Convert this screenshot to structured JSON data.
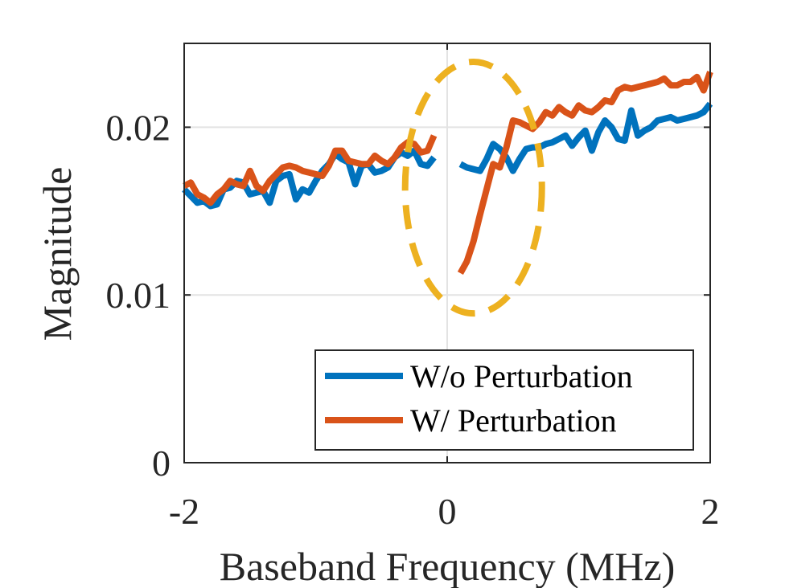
{
  "chart_data": {
    "type": "line",
    "title": "",
    "xlabel": "Baseband Frequency (MHz)",
    "ylabel": "Magnitude",
    "xlim": [
      -2,
      2
    ],
    "ylim": [
      0,
      0.025
    ],
    "xticks": [
      -2,
      0,
      2
    ],
    "xtick_labels": [
      "-2",
      "0",
      "2"
    ],
    "yticks": [
      0,
      0.01,
      0.02
    ],
    "ytick_labels": [
      "0",
      "0.01",
      "0.02"
    ],
    "grid": true,
    "legend_position": "bottom-right",
    "series": [
      {
        "name": "W/o Perturbation",
        "color": "#0072BD",
        "segments": [
          [
            [
              -2.0,
              0.0163
            ],
            [
              -1.95,
              0.0159
            ],
            [
              -1.9,
              0.0155
            ],
            [
              -1.85,
              0.0156
            ],
            [
              -1.8,
              0.0153
            ],
            [
              -1.75,
              0.0154
            ],
            [
              -1.7,
              0.0163
            ],
            [
              -1.65,
              0.0164
            ],
            [
              -1.6,
              0.0168
            ],
            [
              -1.55,
              0.0167
            ],
            [
              -1.5,
              0.016
            ],
            [
              -1.45,
              0.0161
            ],
            [
              -1.4,
              0.0162
            ],
            [
              -1.35,
              0.0155
            ],
            [
              -1.3,
              0.0168
            ],
            [
              -1.25,
              0.0171
            ],
            [
              -1.2,
              0.0172
            ],
            [
              -1.15,
              0.0157
            ],
            [
              -1.1,
              0.0163
            ],
            [
              -1.05,
              0.0161
            ],
            [
              -1.0,
              0.0168
            ],
            [
              -0.95,
              0.0174
            ],
            [
              -0.9,
              0.0178
            ],
            [
              -0.85,
              0.0184
            ],
            [
              -0.8,
              0.0181
            ],
            [
              -0.75,
              0.0179
            ],
            [
              -0.7,
              0.0166
            ],
            [
              -0.65,
              0.0177
            ],
            [
              -0.6,
              0.0178
            ],
            [
              -0.55,
              0.0173
            ],
            [
              -0.5,
              0.0174
            ],
            [
              -0.45,
              0.0176
            ],
            [
              -0.4,
              0.0182
            ],
            [
              -0.35,
              0.0185
            ],
            [
              -0.3,
              0.0183
            ],
            [
              -0.25,
              0.0186
            ],
            [
              -0.2,
              0.0178
            ],
            [
              -0.15,
              0.0177
            ],
            [
              -0.1,
              0.0182
            ]
          ],
          [
            [
              0.1,
              0.0178
            ],
            [
              0.15,
              0.0176
            ],
            [
              0.2,
              0.0175
            ],
            [
              0.25,
              0.0174
            ],
            [
              0.3,
              0.0181
            ],
            [
              0.35,
              0.019
            ],
            [
              0.4,
              0.0187
            ],
            [
              0.45,
              0.0182
            ],
            [
              0.5,
              0.0174
            ],
            [
              0.55,
              0.0181
            ],
            [
              0.6,
              0.0187
            ],
            [
              0.65,
              0.0188
            ],
            [
              0.7,
              0.0188
            ],
            [
              0.75,
              0.019
            ],
            [
              0.8,
              0.0191
            ],
            [
              0.85,
              0.0193
            ],
            [
              0.9,
              0.0195
            ],
            [
              0.95,
              0.0189
            ],
            [
              1.0,
              0.0194
            ],
            [
              1.05,
              0.0198
            ],
            [
              1.1,
              0.0186
            ],
            [
              1.15,
              0.0197
            ],
            [
              1.2,
              0.0204
            ],
            [
              1.25,
              0.02
            ],
            [
              1.3,
              0.0193
            ],
            [
              1.35,
              0.0192
            ],
            [
              1.4,
              0.021
            ],
            [
              1.45,
              0.0195
            ],
            [
              1.5,
              0.0198
            ],
            [
              1.55,
              0.02
            ],
            [
              1.6,
              0.0204
            ],
            [
              1.65,
              0.0205
            ],
            [
              1.7,
              0.0206
            ],
            [
              1.75,
              0.0204
            ],
            [
              1.8,
              0.0205
            ],
            [
              1.85,
              0.0206
            ],
            [
              1.9,
              0.0207
            ],
            [
              1.95,
              0.0209
            ],
            [
              2.0,
              0.0214
            ]
          ]
        ]
      },
      {
        "name": "W/ Perturbation",
        "color": "#D95319",
        "segments": [
          [
            [
              -2.0,
              0.0165
            ],
            [
              -1.95,
              0.0167
            ],
            [
              -1.9,
              0.016
            ],
            [
              -1.85,
              0.0158
            ],
            [
              -1.8,
              0.0155
            ],
            [
              -1.75,
              0.016
            ],
            [
              -1.7,
              0.0163
            ],
            [
              -1.65,
              0.0168
            ],
            [
              -1.6,
              0.0166
            ],
            [
              -1.55,
              0.0165
            ],
            [
              -1.5,
              0.0174
            ],
            [
              -1.45,
              0.0165
            ],
            [
              -1.4,
              0.0162
            ],
            [
              -1.35,
              0.0168
            ],
            [
              -1.3,
              0.0172
            ],
            [
              -1.25,
              0.0176
            ],
            [
              -1.2,
              0.0177
            ],
            [
              -1.15,
              0.0176
            ],
            [
              -1.1,
              0.0174
            ],
            [
              -1.05,
              0.0173
            ],
            [
              -1.0,
              0.0172
            ],
            [
              -0.95,
              0.0171
            ],
            [
              -0.9,
              0.0177
            ],
            [
              -0.85,
              0.0186
            ],
            [
              -0.8,
              0.0186
            ],
            [
              -0.75,
              0.018
            ],
            [
              -0.7,
              0.0179
            ],
            [
              -0.65,
              0.0178
            ],
            [
              -0.6,
              0.0178
            ],
            [
              -0.55,
              0.0183
            ],
            [
              -0.5,
              0.018
            ],
            [
              -0.45,
              0.0178
            ],
            [
              -0.4,
              0.0182
            ],
            [
              -0.35,
              0.0188
            ],
            [
              -0.3,
              0.0191
            ],
            [
              -0.25,
              0.019
            ],
            [
              -0.2,
              0.0185
            ],
            [
              -0.15,
              0.0186
            ],
            [
              -0.1,
              0.0195
            ]
          ],
          [
            [
              0.1,
              0.0113
            ],
            [
              0.15,
              0.012
            ],
            [
              0.2,
              0.0132
            ],
            [
              0.25,
              0.0148
            ],
            [
              0.3,
              0.0163
            ],
            [
              0.35,
              0.0178
            ],
            [
              0.4,
              0.0176
            ],
            [
              0.45,
              0.0188
            ],
            [
              0.5,
              0.0204
            ],
            [
              0.55,
              0.0203
            ],
            [
              0.6,
              0.0201
            ],
            [
              0.65,
              0.0199
            ],
            [
              0.7,
              0.0203
            ],
            [
              0.75,
              0.0209
            ],
            [
              0.8,
              0.0207
            ],
            [
              0.85,
              0.0212
            ],
            [
              0.9,
              0.0209
            ],
            [
              0.95,
              0.0207
            ],
            [
              1.0,
              0.0213
            ],
            [
              1.05,
              0.021
            ],
            [
              1.1,
              0.0209
            ],
            [
              1.15,
              0.0212
            ],
            [
              1.2,
              0.0216
            ],
            [
              1.25,
              0.0215
            ],
            [
              1.3,
              0.0222
            ],
            [
              1.35,
              0.0224
            ],
            [
              1.4,
              0.0223
            ],
            [
              1.45,
              0.0224
            ],
            [
              1.5,
              0.0225
            ],
            [
              1.55,
              0.0226
            ],
            [
              1.6,
              0.0227
            ],
            [
              1.65,
              0.0229
            ],
            [
              1.7,
              0.0225
            ],
            [
              1.75,
              0.0225
            ],
            [
              1.8,
              0.0227
            ],
            [
              1.85,
              0.0227
            ],
            [
              1.9,
              0.023
            ],
            [
              1.95,
              0.0222
            ],
            [
              2.0,
              0.0233
            ]
          ]
        ]
      }
    ],
    "annotations": [
      {
        "type": "dashed-ellipse",
        "color": "#EDB120",
        "center": [
          0.2,
          0.0164
        ],
        "semi_axis_x": 0.52,
        "semi_axis_y": 0.0075
      }
    ]
  }
}
